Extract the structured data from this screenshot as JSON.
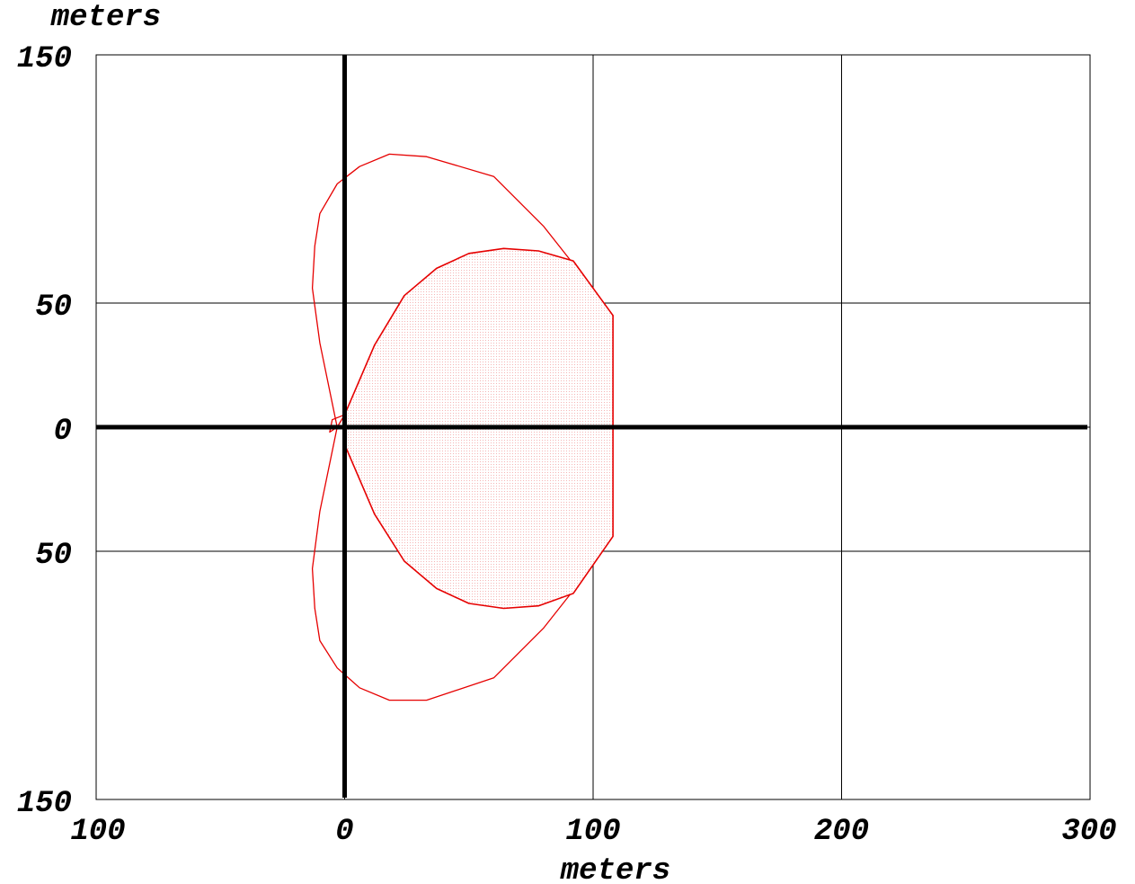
{
  "chart_data": {
    "type": "area",
    "ylabel": "meters",
    "xlabel": "meters",
    "xlim": [
      -100,
      300
    ],
    "ylim": [
      -150,
      150
    ],
    "grid": true,
    "x_ticks": [
      -100,
      0,
      100,
      200,
      300
    ],
    "y_ticks": [
      -150,
      -50,
      0,
      50,
      150
    ],
    "x_tick_labels": [
      "100",
      "0",
      "100",
      "200",
      "300"
    ],
    "y_tick_labels": [
      "150",
      "50",
      "0",
      "50",
      "150"
    ],
    "colors": {
      "curve": "#e60000",
      "fill": "#f5b5b5",
      "axes": "#000000",
      "grid": "#000000"
    },
    "series": [
      {
        "kind": "outline",
        "x": [
          -3,
          -10,
          -13,
          -12,
          -10,
          -3,
          6,
          18,
          33,
          60,
          80,
          95,
          108,
          95,
          80,
          60,
          33,
          18,
          6,
          -3,
          -10,
          -12,
          -13,
          -10,
          -3,
          -6,
          -5,
          0
        ],
        "y": [
          0,
          34,
          56,
          73,
          86,
          98,
          105,
          110,
          109,
          101,
          81,
          62,
          45,
          -62,
          -81,
          -101,
          -110,
          -110,
          -105,
          -97,
          -86,
          -73,
          -57,
          -34,
          0,
          -2,
          3,
          5
        ]
      },
      {
        "kind": "filled",
        "x": [
          0,
          12,
          24,
          37,
          50,
          64,
          78,
          92,
          108,
          108,
          92,
          78,
          64,
          50,
          37,
          24,
          12,
          0
        ],
        "y": [
          5,
          33,
          53,
          64,
          70,
          72,
          71,
          67,
          45,
          -44,
          -67,
          -72,
          -73,
          -71,
          -65,
          -54,
          -35,
          -7
        ]
      }
    ]
  }
}
